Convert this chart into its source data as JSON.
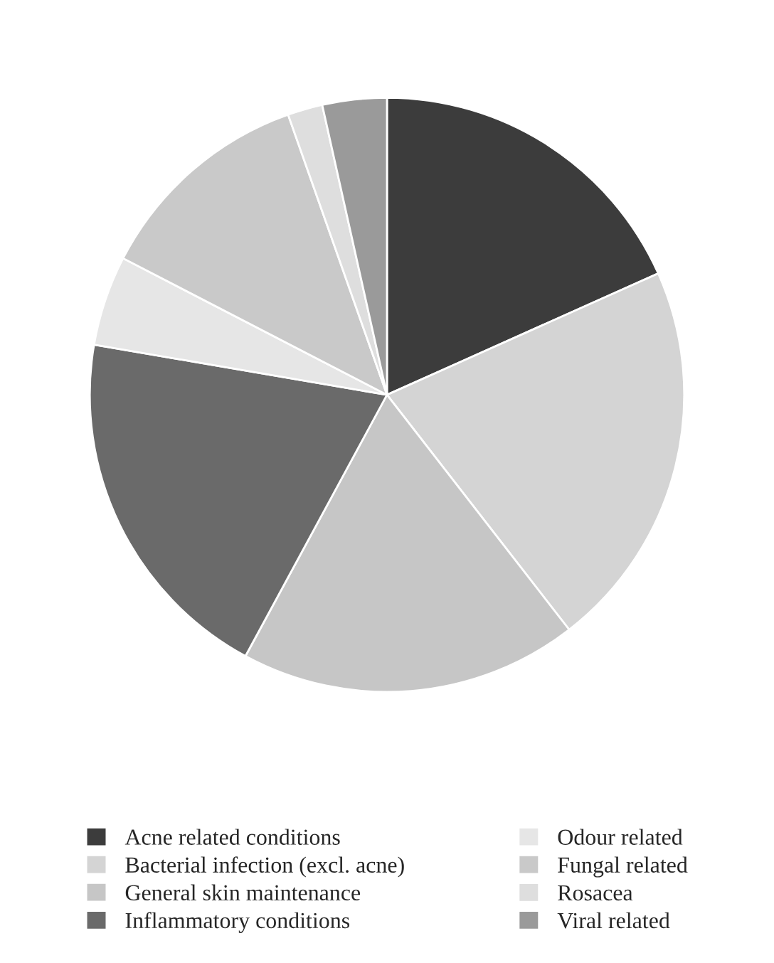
{
  "chart_data": {
    "type": "pie",
    "categories": [
      "Acne related conditions",
      "Bacterial infection (excl. acne)",
      "General skin maintenance",
      "Inflammatory conditions",
      "Odour related",
      "Fungal related",
      "Rosacea",
      "Viral related"
    ],
    "values": [
      18.3,
      21.2,
      18.4,
      19.8,
      4.9,
      12.0,
      1.9,
      3.5
    ],
    "colors": [
      "#3c3c3c",
      "#d4d4d4",
      "#c6c6c6",
      "#6a6a6a",
      "#e6e6e6",
      "#c9c9c9",
      "#dedede",
      "#9a9a9a"
    ],
    "legend": "bottom"
  }
}
